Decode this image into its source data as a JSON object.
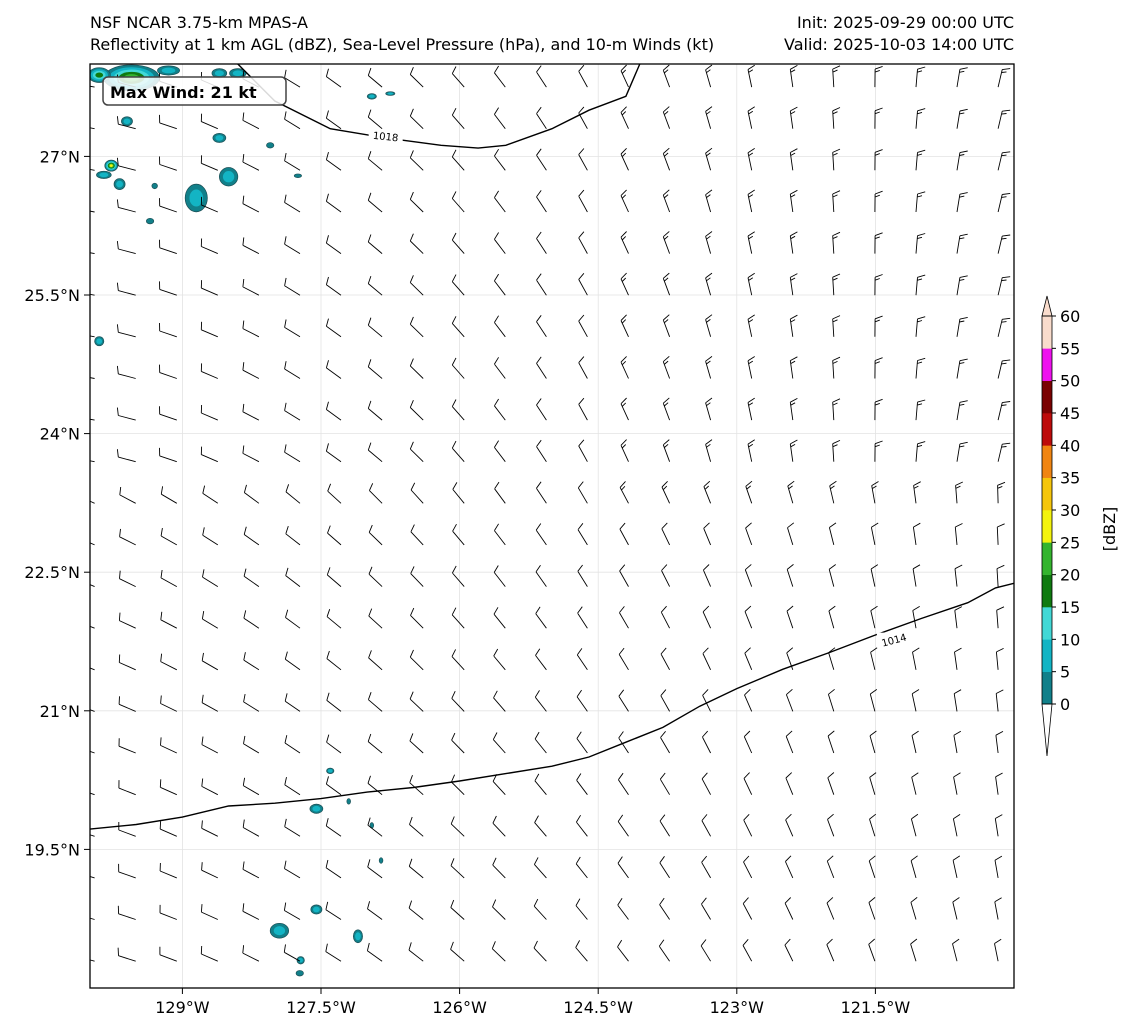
{
  "header": {
    "model": "NSF NCAR 3.75-km MPAS-A",
    "fields": "Reflectivity at 1 km AGL (dBZ), Sea-Level Pressure (hPa), and 10-m Winds (kt)",
    "init": "Init: 2025-09-29 00:00 UTC",
    "valid": "Valid: 2025-10-03 14:00 UTC"
  },
  "map": {
    "lon_range": [
      -130.0,
      -120.0
    ],
    "lat_range": [
      18.0,
      28.0
    ],
    "grid": true,
    "lon_ticks": [
      {
        "value": -129.0,
        "label": "129°W"
      },
      {
        "value": -127.5,
        "label": "127.5°W"
      },
      {
        "value": -126.0,
        "label": "126°W"
      },
      {
        "value": -124.5,
        "label": "124.5°W"
      },
      {
        "value": -123.0,
        "label": "123°W"
      },
      {
        "value": -121.5,
        "label": "121.5°W"
      }
    ],
    "lat_ticks": [
      {
        "value": 27.0,
        "label": "27°N"
      },
      {
        "value": 25.5,
        "label": "25.5°N"
      },
      {
        "value": 24.0,
        "label": "24°N"
      },
      {
        "value": 22.5,
        "label": "22.5°N"
      },
      {
        "value": 21.0,
        "label": "21°N"
      },
      {
        "value": 19.5,
        "label": "19.5°N"
      }
    ],
    "max_wind_label": "Max Wind: 21 kt",
    "isobars": [
      {
        "label": "1018",
        "label_at": [
          -126.8,
          27.22
        ],
        "points": [
          [
            -128.4,
            28.0
          ],
          [
            -128.0,
            27.6
          ],
          [
            -127.4,
            27.3
          ],
          [
            -126.8,
            27.2
          ],
          [
            -126.2,
            27.12
          ],
          [
            -125.8,
            27.09
          ],
          [
            -125.5,
            27.12
          ],
          [
            -125.0,
            27.3
          ],
          [
            -124.6,
            27.5
          ],
          [
            -124.2,
            27.65
          ],
          [
            -124.05,
            28.0
          ]
        ]
      },
      {
        "label": "1014",
        "label_at": [
          -121.3,
          21.77
        ],
        "points": [
          [
            -130.0,
            19.72
          ],
          [
            -129.5,
            19.77
          ],
          [
            -129.0,
            19.85
          ],
          [
            -128.5,
            19.97
          ],
          [
            -128.0,
            20.0
          ],
          [
            -127.5,
            20.05
          ],
          [
            -127.0,
            20.12
          ],
          [
            -126.5,
            20.17
          ],
          [
            -126.0,
            20.24
          ],
          [
            -125.5,
            20.32
          ],
          [
            -125.0,
            20.4
          ],
          [
            -124.6,
            20.5
          ],
          [
            -124.2,
            20.66
          ],
          [
            -123.8,
            20.82
          ],
          [
            -123.4,
            21.05
          ],
          [
            -123.0,
            21.24
          ],
          [
            -122.5,
            21.45
          ],
          [
            -122.0,
            21.63
          ],
          [
            -121.5,
            21.82
          ],
          [
            -121.0,
            22.0
          ],
          [
            -120.5,
            22.17
          ],
          [
            -120.2,
            22.33
          ],
          [
            -120.0,
            22.38
          ]
        ]
      }
    ],
    "echoes": [
      {
        "lon": -129.55,
        "lat": 27.85,
        "rx": 0.3,
        "ry": 0.14,
        "dbz": 25
      },
      {
        "lon": -129.9,
        "lat": 27.88,
        "rx": 0.12,
        "ry": 0.08,
        "dbz": 20
      },
      {
        "lon": -129.15,
        "lat": 27.93,
        "rx": 0.12,
        "ry": 0.05,
        "dbz": 10
      },
      {
        "lon": -128.6,
        "lat": 27.9,
        "rx": 0.08,
        "ry": 0.05,
        "dbz": 10
      },
      {
        "lon": -128.4,
        "lat": 27.9,
        "rx": 0.09,
        "ry": 0.05,
        "dbz": 10
      },
      {
        "lon": -129.6,
        "lat": 27.38,
        "rx": 0.06,
        "ry": 0.05,
        "dbz": 10
      },
      {
        "lon": -128.6,
        "lat": 27.2,
        "rx": 0.07,
        "ry": 0.05,
        "dbz": 10
      },
      {
        "lon": -128.05,
        "lat": 27.12,
        "rx": 0.04,
        "ry": 0.03,
        "dbz": 5
      },
      {
        "lon": -129.77,
        "lat": 26.9,
        "rx": 0.07,
        "ry": 0.06,
        "dbz": 30
      },
      {
        "lon": -129.85,
        "lat": 26.8,
        "rx": 0.08,
        "ry": 0.04,
        "dbz": 10
      },
      {
        "lon": -129.68,
        "lat": 26.7,
        "rx": 0.06,
        "ry": 0.06,
        "dbz": 10
      },
      {
        "lon": -129.3,
        "lat": 26.68,
        "rx": 0.03,
        "ry": 0.03,
        "dbz": 5
      },
      {
        "lon": -128.85,
        "lat": 26.55,
        "rx": 0.12,
        "ry": 0.15,
        "dbz": 10
      },
      {
        "lon": -128.5,
        "lat": 26.78,
        "rx": 0.1,
        "ry": 0.1,
        "dbz": 10
      },
      {
        "lon": -127.75,
        "lat": 26.79,
        "rx": 0.04,
        "ry": 0.02,
        "dbz": 5
      },
      {
        "lon": -129.35,
        "lat": 26.3,
        "rx": 0.04,
        "ry": 0.03,
        "dbz": 5
      },
      {
        "lon": -129.9,
        "lat": 25.0,
        "rx": 0.05,
        "ry": 0.05,
        "dbz": 10
      },
      {
        "lon": -126.95,
        "lat": 27.65,
        "rx": 0.05,
        "ry": 0.03,
        "dbz": 10
      },
      {
        "lon": -126.75,
        "lat": 27.68,
        "rx": 0.05,
        "ry": 0.02,
        "dbz": 10
      },
      {
        "lon": -127.4,
        "lat": 20.35,
        "rx": 0.04,
        "ry": 0.03,
        "dbz": 10
      },
      {
        "lon": -127.55,
        "lat": 19.94,
        "rx": 0.07,
        "ry": 0.05,
        "dbz": 10
      },
      {
        "lon": -127.2,
        "lat": 20.02,
        "rx": 0.02,
        "ry": 0.03,
        "dbz": 5
      },
      {
        "lon": -126.95,
        "lat": 19.76,
        "rx": 0.02,
        "ry": 0.03,
        "dbz": 5
      },
      {
        "lon": -126.85,
        "lat": 19.38,
        "rx": 0.02,
        "ry": 0.03,
        "dbz": 5
      },
      {
        "lon": -127.55,
        "lat": 18.85,
        "rx": 0.06,
        "ry": 0.05,
        "dbz": 10
      },
      {
        "lon": -127.95,
        "lat": 18.62,
        "rx": 0.1,
        "ry": 0.08,
        "dbz": 10
      },
      {
        "lon": -127.1,
        "lat": 18.56,
        "rx": 0.05,
        "ry": 0.07,
        "dbz": 10
      },
      {
        "lon": -127.72,
        "lat": 18.3,
        "rx": 0.04,
        "ry": 0.04,
        "dbz": 10
      },
      {
        "lon": -127.73,
        "lat": 18.16,
        "rx": 0.04,
        "ry": 0.03,
        "dbz": 5
      }
    ]
  },
  "colorbar": {
    "label": "[dBZ]",
    "levels": [
      0,
      5,
      10,
      15,
      20,
      25,
      30,
      35,
      40,
      45,
      50,
      55,
      60
    ],
    "tick_labels": [
      "0",
      "5",
      "10",
      "15",
      "20",
      "25",
      "30",
      "35",
      "40",
      "45",
      "50",
      "55",
      "60"
    ],
    "colors": [
      "#11808a",
      "#13b4c4",
      "#42d8d6",
      "#0f7a10",
      "#34b42e",
      "#f3f30d",
      "#f6c60b",
      "#f08512",
      "#bd0b0b",
      "#7a0202",
      "#ee11ee",
      "#f9dccc"
    ]
  }
}
